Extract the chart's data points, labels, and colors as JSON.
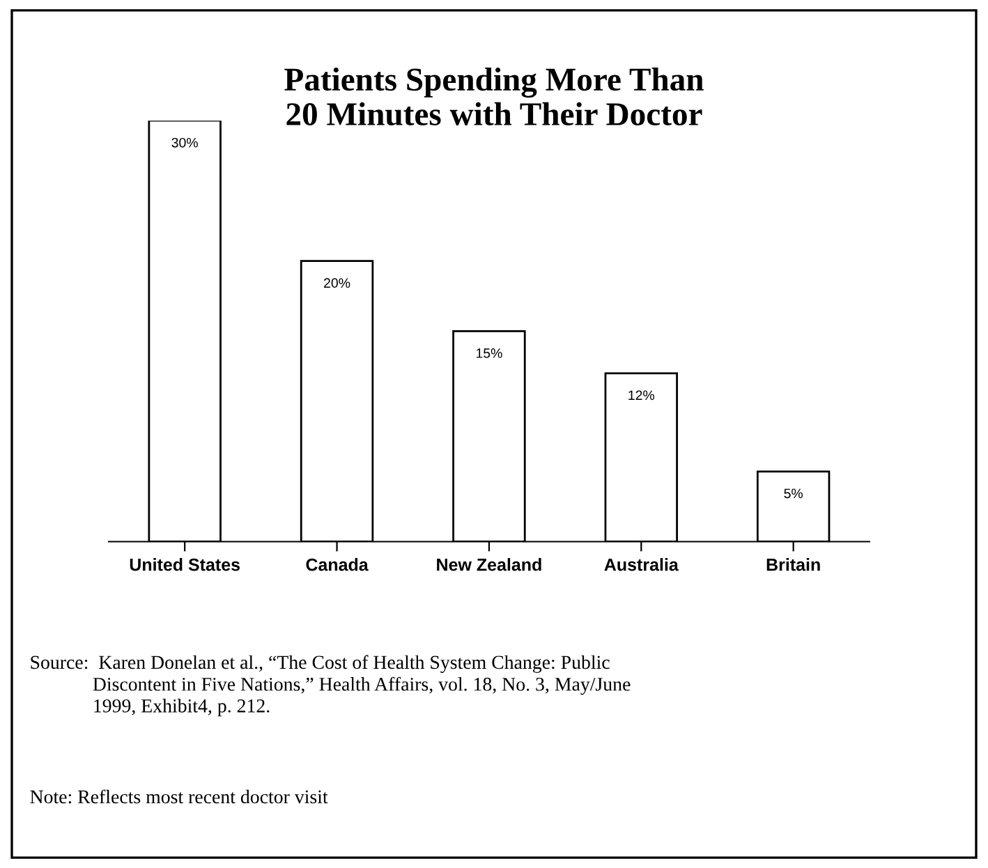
{
  "chart_data": {
    "type": "bar",
    "title": "Patients Spending More Than\n20 Minutes with Their Doctor",
    "categories": [
      "United States",
      "Canada",
      "New Zealand",
      "Australia",
      "Britain"
    ],
    "values": [
      30,
      20,
      15,
      12,
      5
    ],
    "value_labels": [
      "30%",
      "20%",
      "15%",
      "12%",
      "5%"
    ],
    "color": "#ffffff",
    "grid": false,
    "legend": false,
    "tick_labels": "x",
    "annotations": [
      "Source:  Karen Donelan et al., “The Cost of Health System Change: Public\n             Discontent in Five Nations,” Health Affairs, vol. 18, No. 3, May/June\n             1999, Exhibit4, p. 212.",
      "Note: Reflects most recent doctor visit"
    ]
  }
}
